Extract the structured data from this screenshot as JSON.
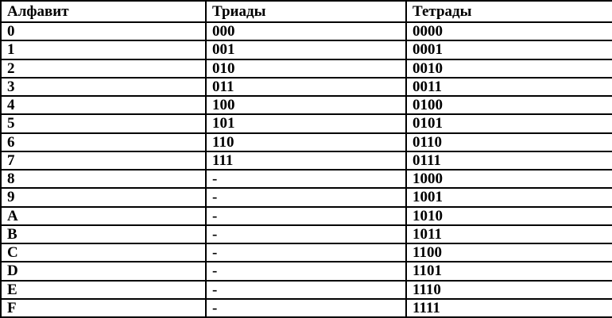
{
  "table": {
    "headers": [
      "Алфавит",
      "Триады",
      "Тетрады"
    ],
    "rows": [
      [
        "0",
        "000",
        "0000"
      ],
      [
        "1",
        "001",
        "0001"
      ],
      [
        "2",
        "010",
        "0010"
      ],
      [
        "3",
        "011",
        "0011"
      ],
      [
        "4",
        "100",
        "0100"
      ],
      [
        "5",
        "101",
        "0101"
      ],
      [
        "6",
        "110",
        "0110"
      ],
      [
        "7",
        "111",
        "0111"
      ],
      [
        "8",
        "-",
        "1000"
      ],
      [
        "9",
        "-",
        "1001"
      ],
      [
        "A",
        "-",
        "1010"
      ],
      [
        "B",
        "-",
        "1011"
      ],
      [
        "C",
        "-",
        "1100"
      ],
      [
        "D",
        "-",
        "1101"
      ],
      [
        "E",
        "-",
        "1110"
      ],
      [
        "F",
        "-",
        "1111"
      ]
    ],
    "colors": {
      "border": "#000000",
      "text": "#000000",
      "background": "#ffffff"
    }
  }
}
